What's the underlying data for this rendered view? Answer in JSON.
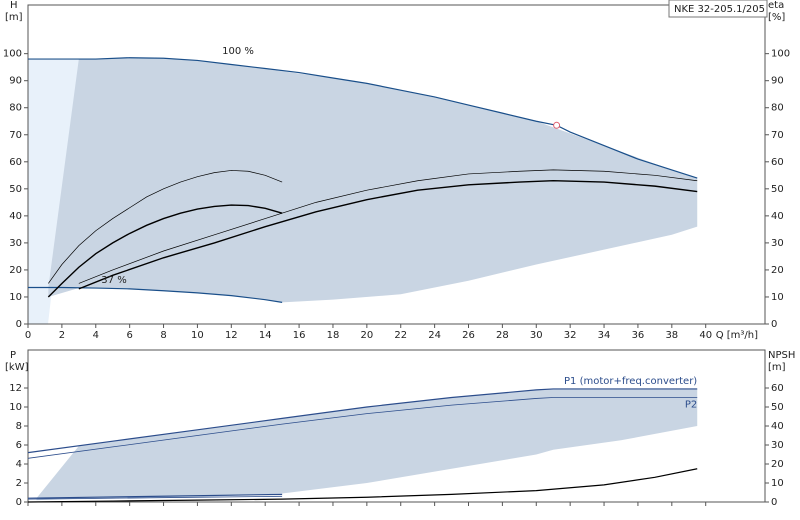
{
  "chart_data": [
    {
      "type": "line",
      "title": "NKE 32-205.1/205",
      "y_label": "H",
      "y_unit": "[m]",
      "y2_label": "eta",
      "y2_unit": "[%]",
      "x_label": "Q [m³/h]",
      "xlim": [
        0,
        43.5
      ],
      "xticks": [
        0,
        2,
        4,
        6,
        8,
        10,
        12,
        14,
        16,
        18,
        20,
        22,
        24,
        26,
        28,
        30,
        32,
        34,
        36,
        38,
        40
      ],
      "ylim": [
        0,
        118
      ],
      "yticks": [
        0,
        10,
        20,
        30,
        40,
        50,
        60,
        70,
        80,
        90,
        100
      ],
      "y2lim": [
        0,
        118
      ],
      "y2ticks": [
        0,
        10,
        20,
        30,
        40,
        50,
        60,
        70,
        80,
        90,
        100
      ],
      "annotations": [
        "100 %",
        "37 %"
      ],
      "envelope": {
        "color": "#c9d5e3",
        "x": [
          1.2,
          3,
          6,
          10,
          12,
          15,
          18,
          22,
          26,
          30,
          34,
          38,
          39.5
        ],
        "upper": [
          13.5,
          98,
          98.5,
          97.5,
          96,
          93.5,
          91,
          86.5,
          81,
          75,
          66,
          57,
          54
        ],
        "lower": [
          10,
          13.3,
          13,
          11.5,
          10.5,
          8,
          9,
          11,
          16,
          22,
          27.5,
          33,
          36
        ]
      },
      "series": [
        {
          "color": "#1a4f8a",
          "line_width": 1.2,
          "x": [
            0,
            2,
            4,
            6,
            8,
            10,
            12,
            14,
            16,
            18,
            20,
            22,
            24,
            26,
            28,
            30,
            31.2,
            32,
            34,
            36,
            38,
            39.5
          ],
          "values": [
            98,
            98,
            98,
            98.5,
            98.3,
            97.5,
            96,
            94.5,
            93,
            91,
            89,
            86.5,
            84,
            81,
            78,
            75,
            73.5,
            71,
            66,
            61,
            57,
            54
          ]
        },
        {
          "color": "#1a4f8a",
          "line_width": 1.2,
          "x": [
            0,
            2,
            4,
            6,
            8,
            10,
            12,
            14,
            15
          ],
          "values": [
            13.5,
            13.5,
            13.3,
            13,
            12.3,
            11.5,
            10.5,
            9,
            8
          ]
        },
        {
          "color": "#000000",
          "line_width": 0.7,
          "axis": "y2",
          "x": [
            1.2,
            2,
            3,
            4,
            5,
            6,
            7,
            8,
            9,
            10,
            11,
            12,
            13,
            14,
            15
          ],
          "values": [
            15,
            22,
            29,
            34.5,
            39,
            43,
            47,
            50,
            52.5,
            54.5,
            56,
            56.8,
            56.5,
            55,
            52.5
          ]
        },
        {
          "color": "#000000",
          "line_width": 1.4,
          "axis": "y2",
          "x": [
            1.2,
            2,
            3,
            4,
            5,
            6,
            7,
            8,
            9,
            10,
            11,
            12,
            13,
            14,
            15
          ],
          "values": [
            10,
            15,
            21,
            26,
            30,
            33.5,
            36.5,
            39,
            41,
            42.5,
            43.5,
            44,
            43.8,
            42.8,
            41
          ]
        },
        {
          "color": "#000000",
          "line_width": 0.7,
          "axis": "y2",
          "x": [
            3,
            5,
            8,
            11,
            14,
            17,
            20,
            23,
            26,
            29,
            31,
            34,
            37,
            39.5
          ],
          "values": [
            15,
            20,
            27,
            33,
            39,
            45,
            49.5,
            53,
            55.5,
            56.5,
            57,
            56.5,
            55,
            53
          ]
        },
        {
          "color": "#000000",
          "line_width": 1.4,
          "axis": "y2",
          "x": [
            3,
            5,
            8,
            11,
            14,
            17,
            20,
            23,
            26,
            29,
            31,
            34,
            37,
            39.5
          ],
          "values": [
            13,
            18,
            24.5,
            30,
            36,
            41.5,
            46,
            49.5,
            51.5,
            52.5,
            53,
            52.5,
            51,
            49
          ]
        }
      ],
      "markers": [
        {
          "x": 31.2,
          "y": 73.5,
          "color": "#e06070"
        }
      ]
    },
    {
      "type": "line",
      "y_label": "P",
      "y_unit": "[kW]",
      "y2_label": "NPSH",
      "y2_unit": "[m]",
      "xlim": [
        0,
        43.5
      ],
      "xticks": [
        0,
        2,
        4,
        6,
        8,
        10,
        12,
        14,
        16,
        18,
        20,
        22,
        24,
        26,
        28,
        30,
        32,
        34,
        36,
        38,
        40
      ],
      "ylim": [
        0,
        16
      ],
      "yticks": [
        0,
        2,
        4,
        6,
        8,
        10,
        12
      ],
      "y2lim": [
        0,
        80
      ],
      "y2ticks": [
        0,
        10,
        20,
        30,
        40,
        50,
        60
      ],
      "envelope": {
        "color": "#c9d5e3",
        "x": [
          0.5,
          3,
          10,
          15,
          20,
          25,
          30,
          31,
          35,
          39.5
        ],
        "upper": [
          0.4,
          5.9,
          7.6,
          8.8,
          10,
          11,
          11.8,
          11.9,
          11.9,
          11.9
        ],
        "lower": [
          0.2,
          0.3,
          0.5,
          0.9,
          2,
          3.5,
          5,
          5.5,
          6.5,
          8
        ]
      },
      "series": [
        {
          "name": "P1 (motor+freq.converter)",
          "color": "#2c4d8c",
          "line_width": 1.2,
          "x": [
            0,
            5,
            10,
            15,
            20,
            25,
            30,
            31,
            35,
            39.5
          ],
          "values": [
            5.2,
            6.4,
            7.6,
            8.8,
            10,
            11,
            11.8,
            11.9,
            11.9,
            11.9
          ]
        },
        {
          "name": "P2",
          "color": "#2c4d8c",
          "line_width": 0.8,
          "x": [
            0,
            5,
            10,
            15,
            20,
            25,
            30,
            31,
            35,
            39.5
          ],
          "values": [
            4.6,
            5.8,
            7,
            8.2,
            9.3,
            10.2,
            10.9,
            11,
            11,
            11
          ]
        },
        {
          "color": "#2c4d8c",
          "line_width": 1.2,
          "x": [
            0,
            15
          ],
          "values": [
            0.4,
            0.8
          ]
        },
        {
          "color": "#2c4d8c",
          "line_width": 0.8,
          "x": [
            0,
            15
          ],
          "values": [
            0.3,
            0.6
          ]
        },
        {
          "color": "#000000",
          "line_width": 1.2,
          "axis": "y2",
          "x": [
            0,
            5,
            10,
            15,
            20,
            25,
            30,
            34,
            37,
            39.5
          ],
          "values": [
            0,
            0.5,
            1,
            1.5,
            2.5,
            4,
            6,
            9,
            13,
            17.5
          ]
        }
      ]
    }
  ]
}
